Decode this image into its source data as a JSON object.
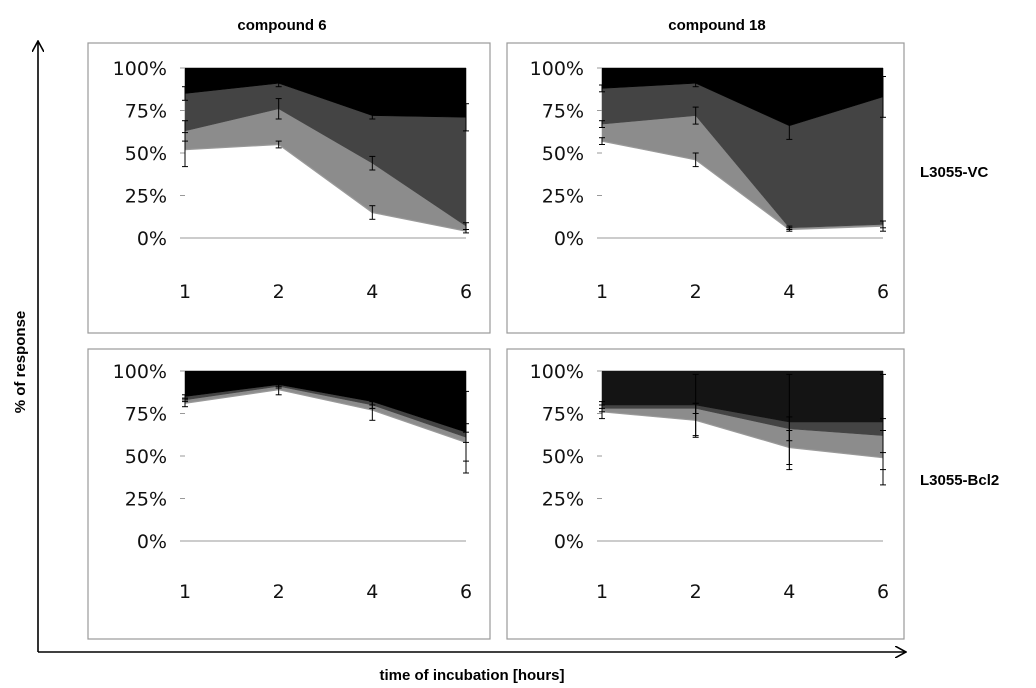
{
  "figure": {
    "col_titles": [
      "compound 6",
      "compound 18"
    ],
    "row_labels": [
      "L3055-VC",
      "L3055-Bcl2"
    ],
    "y_axis_title": "% of response",
    "x_axis_title": "time of incubation [hours]",
    "colors": {
      "band1": "#ffffff",
      "band2": "#8c8c8c",
      "band3": "#444444",
      "band4": "#000000",
      "band4_alt": "#141414"
    }
  },
  "chart_data": [
    {
      "type": "area",
      "title": "compound 6",
      "row": "L3055-VC",
      "categories": [
        "1",
        "2",
        "4",
        "6"
      ],
      "yticks": [
        "0%",
        "25%",
        "50%",
        "75%",
        "100%"
      ],
      "ylim": [
        0,
        100
      ],
      "stacked_boundaries": [
        {
          "values": [
            52,
            55,
            15,
            4
          ],
          "errors": [
            10,
            2,
            4,
            1
          ]
        },
        {
          "values": [
            63,
            76,
            44,
            7
          ],
          "errors": [
            6,
            6,
            4,
            2
          ]
        },
        {
          "values": [
            85,
            91,
            72,
            71
          ],
          "errors": [
            4,
            2,
            2,
            8
          ]
        }
      ]
    },
    {
      "type": "area",
      "title": "compound 18",
      "row": "L3055-VC",
      "categories": [
        "1",
        "2",
        "4",
        "6"
      ],
      "yticks": [
        "0%",
        "25%",
        "50%",
        "75%",
        "100%"
      ],
      "ylim": [
        0,
        100
      ],
      "stacked_boundaries": [
        {
          "values": [
            57,
            46,
            5,
            7
          ],
          "errors": [
            2,
            4,
            1,
            3
          ]
        },
        {
          "values": [
            67,
            72,
            6,
            8
          ],
          "errors": [
            2,
            5,
            1,
            2
          ]
        },
        {
          "values": [
            88,
            91,
            66,
            83
          ],
          "errors": [
            2,
            2,
            8,
            12
          ]
        }
      ]
    },
    {
      "type": "area",
      "title": "compound 6",
      "row": "L3055-Bcl2",
      "categories": [
        "1",
        "2",
        "4",
        "6"
      ],
      "yticks": [
        "0%",
        "25%",
        "50%",
        "75%",
        "100%"
      ],
      "ylim": [
        0,
        100
      ],
      "stacked_boundaries": [
        {
          "values": [
            81,
            89,
            77,
            58
          ],
          "errors": [
            2,
            3,
            6,
            11
          ]
        },
        {
          "values": [
            83,
            91,
            80,
            61
          ],
          "errors": [
            1,
            1,
            2,
            3
          ]
        },
        {
          "values": [
            85,
            92,
            82,
            64
          ],
          "errors": [
            1,
            1,
            2,
            24
          ]
        }
      ]
    },
    {
      "type": "area",
      "title": "compound 18",
      "row": "L3055-Bcl2",
      "categories": [
        "1",
        "2",
        "4",
        "6"
      ],
      "yticks": [
        "0%",
        "25%",
        "50%",
        "75%",
        "100%"
      ],
      "ylim": [
        0,
        100
      ],
      "stacked_boundaries": [
        {
          "values": [
            76,
            71,
            55,
            49
          ],
          "errors": [
            4,
            10,
            10,
            16
          ]
        },
        {
          "values": [
            78,
            78,
            66,
            62
          ],
          "errors": [
            2,
            3,
            7,
            10
          ]
        },
        {
          "values": [
            80,
            80,
            70,
            70
          ],
          "errors": [
            2,
            18,
            28,
            28
          ]
        }
      ]
    }
  ]
}
